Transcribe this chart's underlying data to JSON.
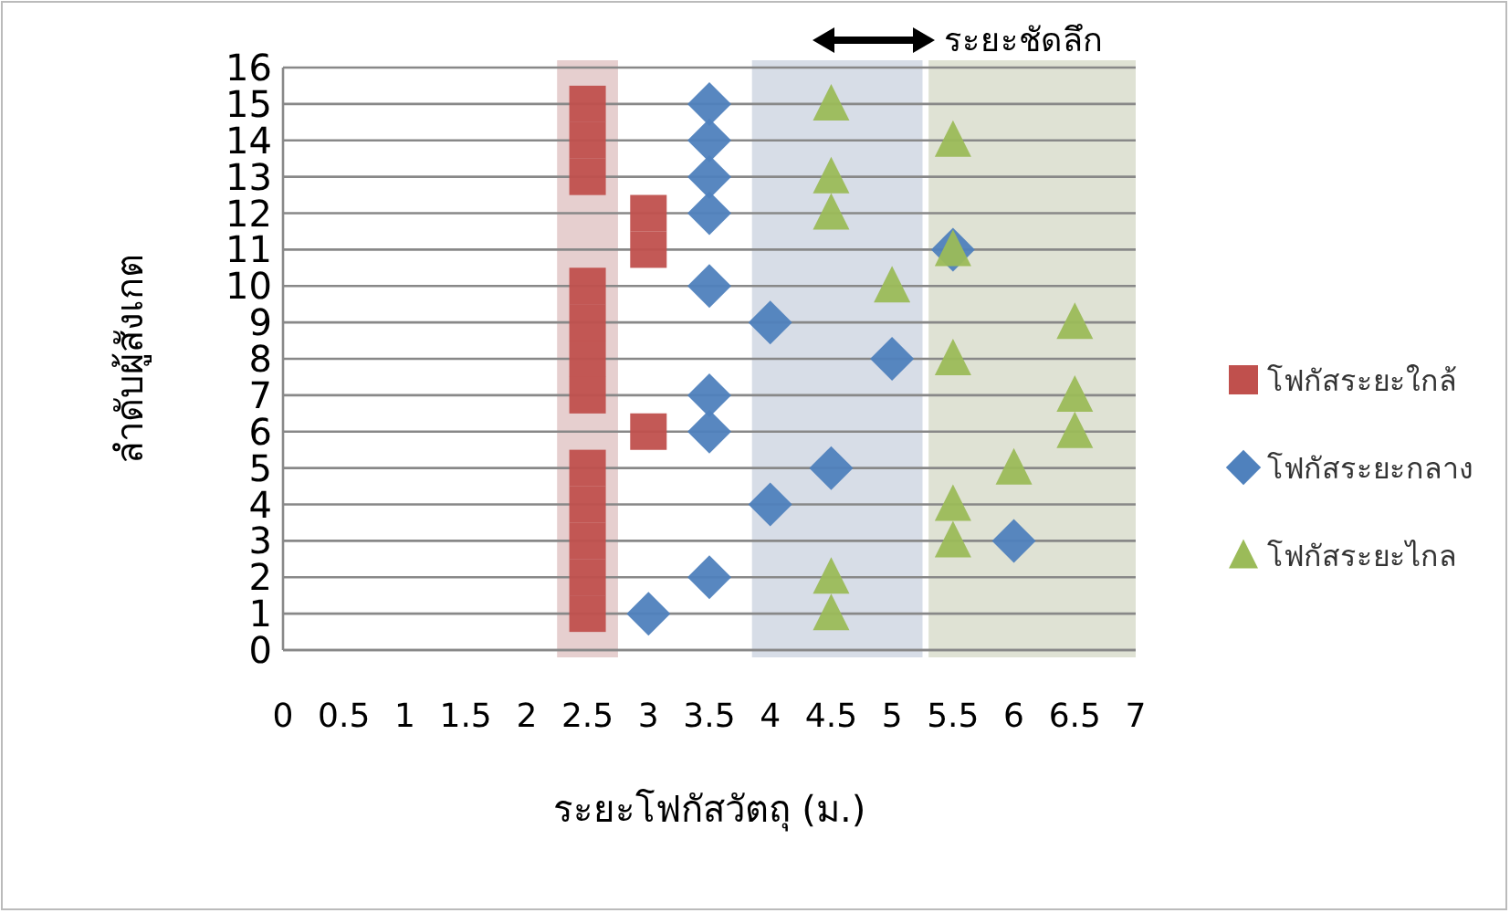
{
  "chart_data": {
    "type": "scatter",
    "xlabel": "ระยะโฟกัสวัตถุ (ม.)",
    "ylabel": "ลำดับผู้สังเกต",
    "xlim": [
      0,
      7
    ],
    "ylim": [
      0,
      16
    ],
    "xticks": [
      0,
      0.5,
      1,
      1.5,
      2,
      2.5,
      3,
      3.5,
      4,
      4.5,
      5,
      5.5,
      6,
      6.5,
      7
    ],
    "yticks": [
      0,
      1,
      2,
      3,
      4,
      5,
      6,
      7,
      8,
      9,
      10,
      11,
      12,
      13,
      14,
      15,
      16
    ],
    "grid": "y",
    "legend": "right",
    "bands": [
      {
        "axis": "x",
        "from": 2.25,
        "to": 2.75,
        "color": "#e6cfcf"
      },
      {
        "axis": "x",
        "from": 3.85,
        "to": 5.25,
        "color": "#d7dde7"
      },
      {
        "axis": "x",
        "from": 5.3,
        "to": 7,
        "color": "#dfe2d4"
      }
    ],
    "annotations": [
      "ระยะชัดลึก"
    ],
    "series": [
      {
        "name": "โฟกัสระยะใกล้",
        "color": "#c0504d",
        "marker": "square",
        "x": [
          2.5,
          2.5,
          2.5,
          2.5,
          2.5,
          3,
          2.5,
          2.5,
          2.5,
          2.5,
          3,
          3,
          2.5,
          2.5,
          2.5
        ],
        "values": [
          1,
          2,
          3,
          4,
          5,
          6,
          7,
          8,
          9,
          10,
          11,
          12,
          13,
          14,
          15
        ]
      },
      {
        "name": "โฟกัสระยะกลาง",
        "color": "#4f81bd",
        "marker": "diamond",
        "x": [
          3,
          3.5,
          6,
          4,
          4.5,
          3.5,
          3.5,
          5,
          4,
          3.5,
          5.5,
          3.5,
          3.5,
          3.5,
          3.5
        ],
        "values": [
          1,
          2,
          3,
          4,
          5,
          6,
          7,
          8,
          9,
          10,
          11,
          12,
          13,
          14,
          15
        ]
      },
      {
        "name": "โฟกัสระยะไกล",
        "color": "#9bbb59",
        "marker": "triangle",
        "x": [
          4.5,
          4.5,
          5.5,
          5.5,
          6,
          6.5,
          6.5,
          5.5,
          6.5,
          5,
          5.5,
          4.5,
          4.5,
          5.5,
          4.5
        ],
        "values": [
          1,
          2,
          3,
          4,
          5,
          6,
          7,
          8,
          9,
          10,
          11,
          12,
          13,
          14,
          15
        ]
      }
    ]
  }
}
